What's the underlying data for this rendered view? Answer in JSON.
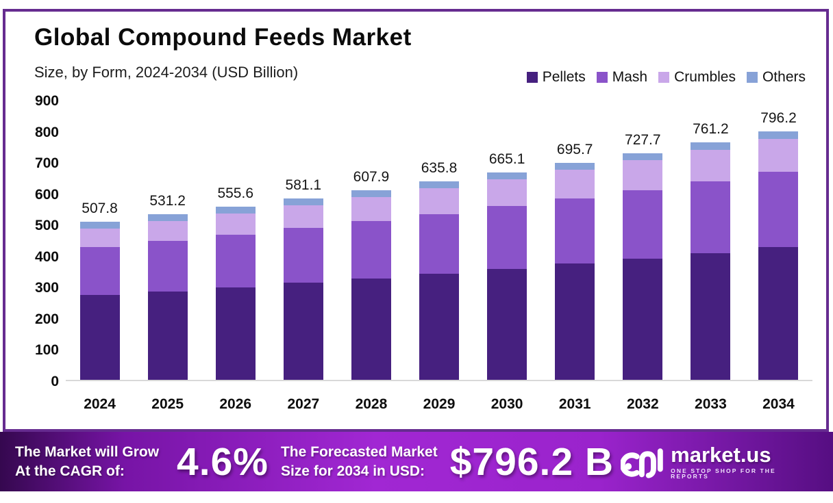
{
  "header": {
    "title": "Global Compound Feeds Market",
    "subtitle": "Size, by Form, 2024-2034 (USD Billion)"
  },
  "chart_data": {
    "type": "bar",
    "stacked": true,
    "title": "Global Compound Feeds Market Size, by Form, 2024-2034 (USD Billion)",
    "xlabel": "",
    "ylabel": "USD Billion",
    "ylim": [
      0,
      900
    ],
    "yticks": [
      0,
      100,
      200,
      300,
      400,
      500,
      600,
      700,
      800,
      900
    ],
    "grid": false,
    "legend_position": "top-right",
    "categories": [
      "2024",
      "2025",
      "2026",
      "2027",
      "2028",
      "2029",
      "2030",
      "2031",
      "2032",
      "2033",
      "2034"
    ],
    "totals": [
      507.8,
      531.2,
      555.6,
      581.1,
      607.9,
      635.8,
      665.1,
      695.7,
      727.7,
      761.2,
      796.2
    ],
    "series": [
      {
        "name": "Pellets",
        "color": "#46207f",
        "values": [
          271.7,
          284.2,
          297.2,
          310.9,
          325.2,
          340.2,
          355.8,
          372.2,
          389.3,
          407.2,
          426.0
        ]
      },
      {
        "name": "Mash",
        "color": "#8a53c9",
        "values": [
          153.4,
          160.4,
          167.8,
          175.5,
          183.6,
          192.0,
          200.9,
          210.1,
          219.8,
          229.9,
          240.4
        ]
      },
      {
        "name": "Crumbles",
        "color": "#c9a7e9",
        "values": [
          60.9,
          64.6,
          68.6,
          72.6,
          77.0,
          81.4,
          86.2,
          91.1,
          96.3,
          101.7,
          107.4
        ]
      },
      {
        "name": "Others",
        "color": "#87a2d7",
        "values": [
          21.8,
          22.0,
          22.0,
          22.1,
          22.1,
          22.2,
          22.2,
          22.3,
          22.3,
          22.4,
          22.4
        ]
      }
    ]
  },
  "banner": {
    "cagr_label_line1": "The Market will Grow",
    "cagr_label_line2": "At the CAGR of:",
    "cagr_value": "4.6%",
    "forecast_label_line1": "The Forecasted Market",
    "forecast_label_line2": "Size for 2034 in USD:",
    "forecast_value": "$796.2 B",
    "brand_name": "market.us",
    "brand_tagline": "ONE STOP SHOP FOR THE REPORTS"
  },
  "colors": {
    "card_border": "#662c90",
    "axis_line": "#d8d8d8",
    "banner_gradient_start": "#35084f",
    "banner_gradient_mid": "#a127d3",
    "banner_gradient_end": "#560e82"
  }
}
